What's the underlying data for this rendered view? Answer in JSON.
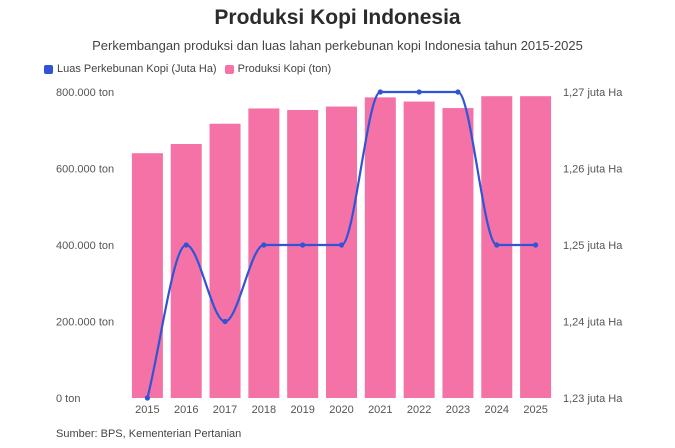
{
  "title": "Produksi Kopi Indonesia",
  "subtitle": "Perkembangan produksi dan luas lahan perkebunan kopi Indonesia tahun 2015-2025",
  "source": "Sumber: BPS, Kementerian Pertanian",
  "chart_data": {
    "type": "bar",
    "categories": [
      "2015",
      "2016",
      "2017",
      "2018",
      "2019",
      "2020",
      "2021",
      "2022",
      "2023",
      "2024",
      "2025"
    ],
    "series": [
      {
        "name": "Produksi Kopi (ton)",
        "type": "bar",
        "axis": "left",
        "color": "#f472a6",
        "values": [
          640000,
          664000,
          717000,
          757000,
          753000,
          762000,
          786000,
          775000,
          758000,
          789000,
          789000
        ]
      },
      {
        "name": "Luas Perkebunan Kopi (Juta Ha)",
        "type": "line",
        "axis": "right",
        "color": "#2f54d6",
        "values": [
          1.23,
          1.25,
          1.24,
          1.25,
          1.25,
          1.25,
          1.27,
          1.27,
          1.27,
          1.25,
          1.25
        ]
      }
    ],
    "left_axis": {
      "ylim": [
        0,
        800000
      ],
      "ticks": [
        0,
        200000,
        400000,
        600000,
        800000
      ],
      "tick_labels": [
        "0 ton",
        "200.000 ton",
        "400.000 ton",
        "600.000 ton",
        "800.000 ton"
      ]
    },
    "right_axis": {
      "ylim": [
        1.23,
        1.27
      ],
      "ticks": [
        1.23,
        1.24,
        1.25,
        1.26,
        1.27
      ],
      "tick_labels": [
        "1,23 juta Ha",
        "1,24 juta Ha",
        "1,25 juta Ha",
        "1,26 juta Ha",
        "1,27 juta Ha"
      ]
    },
    "grid": false,
    "legend": "top-left"
  }
}
